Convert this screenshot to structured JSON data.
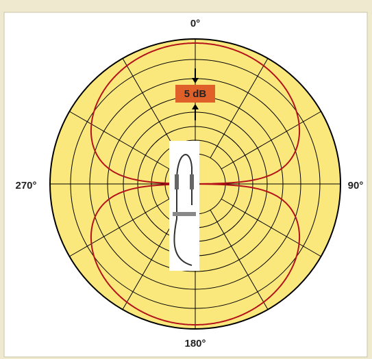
{
  "labels": {
    "top": "0°",
    "right": "90°",
    "bottom": "180°",
    "left": "270°"
  },
  "scale_label": "5 dB"
}
